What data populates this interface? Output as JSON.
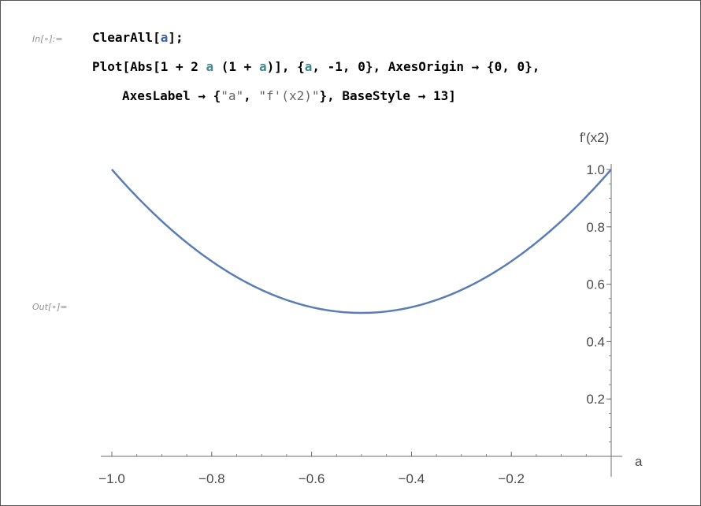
{
  "notebook": {
    "input_label": "In[∘]:=",
    "output_label": "Out[∘]=",
    "code": {
      "line1_cmd": "ClearAll[",
      "line1_var": "a",
      "line1_end": "];",
      "line2_a": "Plot[Abs[1 + 2 ",
      "line2_var1": "a",
      "line2_b": " (1 + ",
      "line2_var2": "a",
      "line2_c": ")], {",
      "line2_var3": "a",
      "line2_d": ", -1, 0}, AxesOrigin → {0, 0},",
      "line3_a": "AxesLabel → {",
      "line3_str1": "\"a\"",
      "line3_b": ", ",
      "line3_str2": "\"f'(x2)\"",
      "line3_c": "}, BaseStyle → 13]"
    }
  },
  "chart_data": {
    "type": "line",
    "function": "Abs[1 + 2 a (1 + a)]",
    "xlabel": "a",
    "ylabel": "f'(x2)",
    "xlim": [
      -1.0,
      0.0
    ],
    "ylim": [
      0.0,
      1.0
    ],
    "x_ticks": [
      -1.0,
      -0.8,
      -0.6,
      -0.4,
      -0.2
    ],
    "x_tick_labels": [
      "−1.0",
      "−0.8",
      "−0.6",
      "−0.4",
      "−0.2"
    ],
    "y_ticks": [
      0.2,
      0.4,
      0.6,
      0.8,
      1.0
    ],
    "y_tick_labels": [
      "0.2",
      "0.4",
      "0.6",
      "0.8",
      "1.0"
    ],
    "series": [
      {
        "x": [
          -1.0,
          -0.9,
          -0.8,
          -0.7,
          -0.6,
          -0.5,
          -0.4,
          -0.3,
          -0.2,
          -0.1,
          0.0
        ],
        "y": [
          1.0,
          0.82,
          0.68,
          0.58,
          0.52,
          0.5,
          0.52,
          0.58,
          0.68,
          0.82,
          1.0
        ]
      }
    ],
    "line_color": "#5b7db5",
    "axis_color": "#6e6e6e",
    "grid": false
  }
}
